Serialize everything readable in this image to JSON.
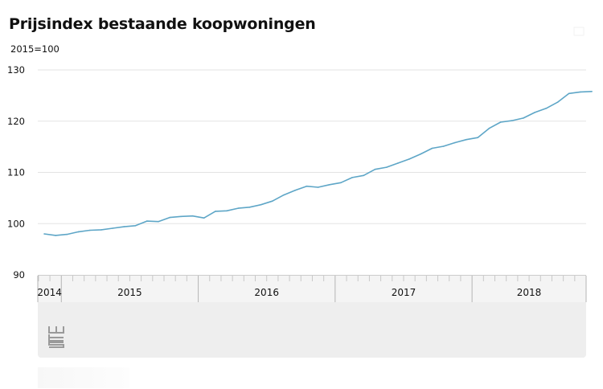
{
  "title": "Prijsindex bestaande koopwoningen",
  "subtitle": "2015=100",
  "icons": {
    "logo": "cbs-logo",
    "corner": "expand-icon"
  },
  "colors": {
    "line": "#5ea6c7",
    "grid": "#e3e3e3",
    "axis": "#999999",
    "panel": "#eeeeee"
  },
  "chart_data": {
    "type": "line",
    "title": "Prijsindex bestaande koopwoningen",
    "ylabel": "2015=100",
    "ylim": [
      90,
      130
    ],
    "yticks": [
      90,
      100,
      110,
      120,
      130
    ],
    "grid": true,
    "x_start": "2014-11",
    "year_labels": [
      "2014",
      "2015",
      "2016",
      "2017",
      "2018"
    ],
    "x": [
      "2014-11",
      "2014-12",
      "2015-01",
      "2015-02",
      "2015-03",
      "2015-04",
      "2015-05",
      "2015-06",
      "2015-07",
      "2015-08",
      "2015-09",
      "2015-10",
      "2015-11",
      "2015-12",
      "2016-01",
      "2016-02",
      "2016-03",
      "2016-04",
      "2016-05",
      "2016-06",
      "2016-07",
      "2016-08",
      "2016-09",
      "2016-10",
      "2016-11",
      "2016-12",
      "2017-01",
      "2017-02",
      "2017-03",
      "2017-04",
      "2017-05",
      "2017-06",
      "2017-07",
      "2017-08",
      "2017-09",
      "2017-10",
      "2017-11",
      "2017-12",
      "2018-01",
      "2018-02",
      "2018-03",
      "2018-04",
      "2018-05",
      "2018-06",
      "2018-07",
      "2018-08",
      "2018-09",
      "2018-10",
      "2018-11"
    ],
    "values": [
      98.0,
      97.7,
      97.9,
      98.4,
      98.7,
      98.8,
      99.1,
      99.4,
      99.6,
      100.5,
      100.4,
      101.2,
      101.4,
      101.5,
      101.1,
      102.4,
      102.5,
      103.0,
      103.2,
      103.7,
      104.4,
      105.6,
      106.5,
      107.3,
      107.1,
      107.6,
      108.0,
      109.0,
      109.4,
      110.6,
      111.0,
      111.8,
      112.6,
      113.6,
      114.7,
      115.1,
      115.8,
      116.4,
      116.8,
      118.6,
      119.8,
      120.1,
      120.6,
      121.7,
      122.5,
      123.7,
      125.4,
      125.7,
      125.8
    ]
  }
}
